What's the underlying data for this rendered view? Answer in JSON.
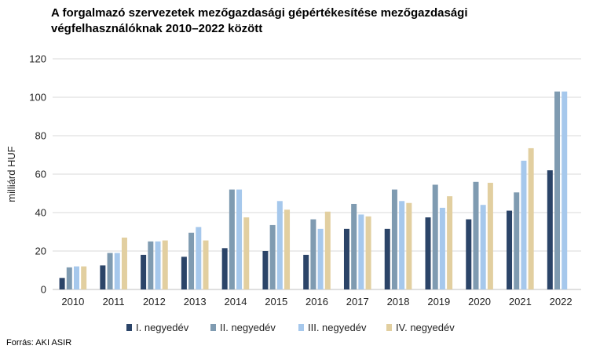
{
  "chart_data": {
    "type": "bar",
    "title": "A forgalmazó szervezetek mezőgazdasági gépértékesítése mezőgazdasági végfelhasználóknak 2010–2022 között",
    "ylabel": "milliárd HUF",
    "xlabel": "",
    "ylim": [
      0,
      120
    ],
    "yticks": [
      0,
      20,
      40,
      60,
      80,
      100,
      120
    ],
    "grid": true,
    "legend_position": "bottom",
    "categories": [
      "2010",
      "2011",
      "2012",
      "2013",
      "2014",
      "2015",
      "2016",
      "2017",
      "2018",
      "2019",
      "2020",
      "2021",
      "2022"
    ],
    "series": [
      {
        "name": "I. negyedév",
        "color": "#2b4468",
        "values": [
          6,
          12.5,
          18,
          17,
          21.5,
          20,
          18,
          31.5,
          31.5,
          37.5,
          36.5,
          41,
          62
        ]
      },
      {
        "name": "II. negyedév",
        "color": "#7f9bb1",
        "values": [
          11.5,
          19,
          25,
          29.5,
          52,
          33.5,
          36.5,
          44.5,
          52,
          54.5,
          56,
          50.5,
          103
        ]
      },
      {
        "name": "III. negyedév",
        "color": "#a6c8ec",
        "values": [
          12,
          19,
          25,
          32.5,
          52,
          46,
          31.5,
          39,
          46,
          42.5,
          44,
          67,
          103
        ]
      },
      {
        "name": "IV. negyedév",
        "color": "#e2cfa0",
        "values": [
          12,
          27,
          25.5,
          25.5,
          37.5,
          41.5,
          40.5,
          38,
          45,
          48.5,
          55.5,
          73.5,
          null
        ]
      }
    ]
  },
  "source": "Forrás: AKI ASIR"
}
